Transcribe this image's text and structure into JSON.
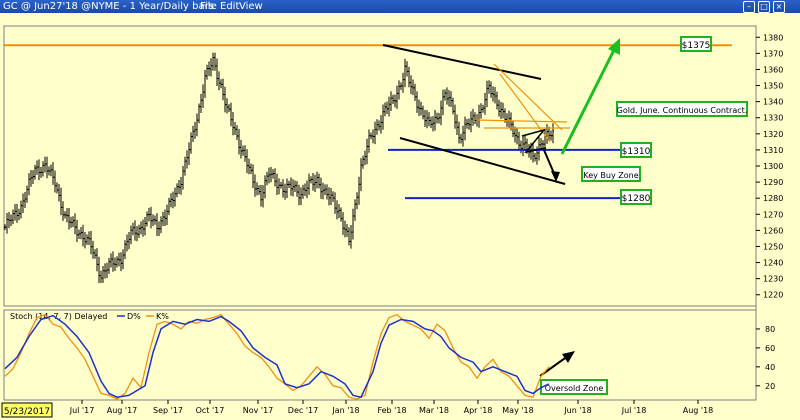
{
  "window": {
    "title": "GC @ Jun27'18 @NYME - 1 Year/Daily bars",
    "menu": [
      "File",
      "Edit",
      "View"
    ]
  },
  "annotations": {
    "resistance_label": "$1375",
    "support_label": "$1310",
    "lower_label": "$1280",
    "contract_note": "Gold. June. Continuous Contract.",
    "buy_zone": "Key Buy Zone",
    "oversold": "Oversold Zone",
    "start_date": "5/23/2017"
  },
  "colors": {
    "background": "#ffffcc",
    "bars": "#000000",
    "orange_line": "#f0900a",
    "blue_line": "#1020d0",
    "green_arrow": "#18c020",
    "label_border": "#20b020",
    "d_line": "#2030c8",
    "k_line": "#f09010"
  },
  "chart_data": [
    {
      "type": "bar",
      "style": "ohlc-daily",
      "ylim": [
        1213,
        1387
      ],
      "y_ticks": [
        1220,
        1230,
        1240,
        1250,
        1260,
        1270,
        1280,
        1290,
        1300,
        1310,
        1320,
        1330,
        1340,
        1350,
        1360,
        1370,
        1380
      ],
      "x_ticks": [
        "Jul '17",
        "Aug '17",
        "Sep '17",
        "Oct '17",
        "Nov '17",
        "Dec '17",
        "Jan '18",
        "Feb '18",
        "Mar '18",
        "Apr '18",
        "May '18",
        "Jun '18",
        "Jul '18",
        "Aug '18"
      ],
      "grid": false,
      "close_path": [
        [
          0,
          1262
        ],
        [
          8,
          1275
        ],
        [
          15,
          1298
        ],
        [
          20,
          1300
        ],
        [
          25,
          1290
        ],
        [
          30,
          1268
        ],
        [
          38,
          1258
        ],
        [
          43,
          1250
        ],
        [
          48,
          1232
        ],
        [
          52,
          1238
        ],
        [
          58,
          1243
        ],
        [
          63,
          1258
        ],
        [
          68,
          1262
        ],
        [
          72,
          1268
        ],
        [
          76,
          1263
        ],
        [
          80,
          1269
        ],
        [
          84,
          1280
        ],
        [
          88,
          1292
        ],
        [
          92,
          1310
        ],
        [
          96,
          1330
        ],
        [
          100,
          1355
        ],
        [
          104,
          1365
        ],
        [
          108,
          1350
        ],
        [
          111,
          1335
        ],
        [
          114,
          1325
        ],
        [
          117,
          1315
        ],
        [
          120,
          1305
        ],
        [
          124,
          1290
        ],
        [
          128,
          1282
        ],
        [
          132,
          1295
        ],
        [
          136,
          1290
        ],
        [
          140,
          1285
        ],
        [
          144,
          1287
        ],
        [
          148,
          1283
        ],
        [
          152,
          1288
        ],
        [
          156,
          1292
        ],
        [
          160,
          1283
        ],
        [
          164,
          1278
        ],
        [
          167,
          1272
        ],
        [
          170,
          1260
        ],
        [
          172,
          1252
        ],
        [
          175,
          1275
        ],
        [
          178,
          1300
        ],
        [
          182,
          1315
        ],
        [
          186,
          1325
        ],
        [
          190,
          1335
        ],
        [
          194,
          1340
        ],
        [
          198,
          1352
        ],
        [
          200,
          1360
        ],
        [
          202,
          1352
        ],
        [
          206,
          1340
        ],
        [
          209,
          1332
        ],
        [
          212,
          1325
        ],
        [
          216,
          1330
        ],
        [
          220,
          1345
        ],
        [
          224,
          1335
        ],
        [
          227,
          1318
        ],
        [
          231,
          1325
        ],
        [
          235,
          1330
        ],
        [
          238,
          1335
        ],
        [
          242,
          1348
        ],
        [
          246,
          1340
        ],
        [
          250,
          1330
        ],
        [
          254,
          1322
        ],
        [
          257,
          1315
        ],
        [
          260,
          1312
        ],
        [
          264,
          1305
        ],
        [
          268,
          1315
        ],
        [
          271,
          1318
        ],
        [
          274,
          1320
        ]
      ],
      "lines": [
        {
          "kind": "horizontal",
          "value": 1375,
          "color": "orange"
        },
        {
          "kind": "horizontal",
          "value": 1310,
          "color": "blue"
        },
        {
          "kind": "horizontal",
          "value": 1280,
          "color": "blue"
        }
      ]
    },
    {
      "type": "line",
      "title": "Stoch (14, 7, 7) Delayed",
      "ylim": [
        5,
        100
      ],
      "y_ticks": [
        20,
        40,
        60,
        80
      ],
      "series": [
        {
          "name": "D%",
          "points": [
            [
              0,
              38
            ],
            [
              6,
              50
            ],
            [
              12,
              72
            ],
            [
              18,
              90
            ],
            [
              24,
              94
            ],
            [
              30,
              85
            ],
            [
              36,
              72
            ],
            [
              42,
              55
            ],
            [
              48,
              25
            ],
            [
              52,
              12
            ],
            [
              56,
              8
            ],
            [
              62,
              10
            ],
            [
              70,
              20
            ],
            [
              74,
              55
            ],
            [
              78,
              80
            ],
            [
              84,
              88
            ],
            [
              90,
              85
            ],
            [
              96,
              90
            ],
            [
              102,
              88
            ],
            [
              108,
              93
            ],
            [
              112,
              88
            ],
            [
              118,
              78
            ],
            [
              124,
              60
            ],
            [
              130,
              50
            ],
            [
              136,
              42
            ],
            [
              140,
              22
            ],
            [
              146,
              18
            ],
            [
              152,
              22
            ],
            [
              158,
              35
            ],
            [
              164,
              30
            ],
            [
              170,
              22
            ],
            [
              174,
              10
            ],
            [
              178,
              8
            ],
            [
              184,
              35
            ],
            [
              188,
              65
            ],
            [
              192,
              84
            ],
            [
              198,
              90
            ],
            [
              204,
              88
            ],
            [
              210,
              80
            ],
            [
              214,
              78
            ],
            [
              218,
              72
            ],
            [
              222,
              60
            ],
            [
              228,
              50
            ],
            [
              234,
              45
            ],
            [
              238,
              35
            ],
            [
              244,
              40
            ],
            [
              250,
              35
            ],
            [
              256,
              30
            ],
            [
              260,
              15
            ],
            [
              264,
              12
            ],
            [
              268,
              18
            ],
            [
              272,
              22
            ]
          ]
        },
        {
          "name": "K%",
          "points": [
            [
              0,
              30
            ],
            [
              4,
              38
            ],
            [
              8,
              55
            ],
            [
              12,
              75
            ],
            [
              16,
              92
            ],
            [
              20,
              95
            ],
            [
              24,
              85
            ],
            [
              28,
              82
            ],
            [
              32,
              70
            ],
            [
              36,
              60
            ],
            [
              40,
              48
            ],
            [
              44,
              30
            ],
            [
              48,
              12
            ],
            [
              52,
              10
            ],
            [
              56,
              6
            ],
            [
              60,
              12
            ],
            [
              64,
              28
            ],
            [
              68,
              18
            ],
            [
              72,
              55
            ],
            [
              76,
              85
            ],
            [
              80,
              88
            ],
            [
              84,
              85
            ],
            [
              88,
              80
            ],
            [
              92,
              88
            ],
            [
              96,
              86
            ],
            [
              100,
              90
            ],
            [
              104,
              92
            ],
            [
              108,
              95
            ],
            [
              112,
              85
            ],
            [
              116,
              75
            ],
            [
              120,
              62
            ],
            [
              124,
              55
            ],
            [
              128,
              50
            ],
            [
              132,
              40
            ],
            [
              136,
              28
            ],
            [
              140,
              22
            ],
            [
              144,
              15
            ],
            [
              148,
              20
            ],
            [
              152,
              30
            ],
            [
              156,
              40
            ],
            [
              160,
              32
            ],
            [
              164,
              20
            ],
            [
              168,
              18
            ],
            [
              172,
              8
            ],
            [
              176,
              6
            ],
            [
              180,
              10
            ],
            [
              184,
              45
            ],
            [
              188,
              75
            ],
            [
              192,
              92
            ],
            [
              196,
              95
            ],
            [
              200,
              88
            ],
            [
              204,
              84
            ],
            [
              208,
              80
            ],
            [
              212,
              70
            ],
            [
              216,
              85
            ],
            [
              220,
              78
            ],
            [
              224,
              60
            ],
            [
              228,
              45
            ],
            [
              232,
              40
            ],
            [
              236,
              28
            ],
            [
              240,
              40
            ],
            [
              244,
              48
            ],
            [
              248,
              35
            ],
            [
              252,
              30
            ],
            [
              256,
              20
            ],
            [
              260,
              10
            ],
            [
              264,
              8
            ],
            [
              268,
              30
            ],
            [
              272,
              40
            ]
          ]
        }
      ]
    }
  ]
}
